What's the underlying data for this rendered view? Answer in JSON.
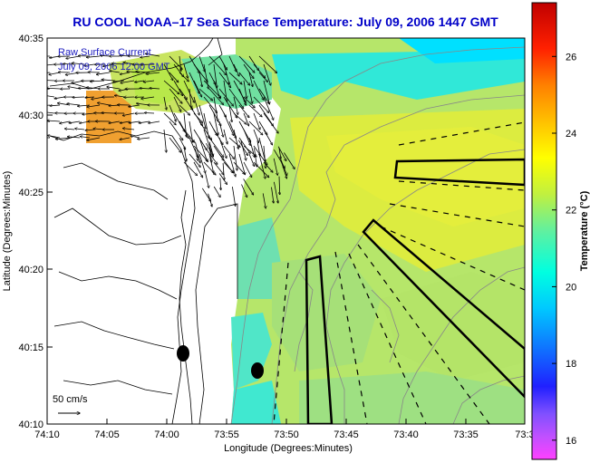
{
  "title": "RU COOL  NOAA–17  Sea Surface Temperature:  July 09, 2006 1447 GMT",
  "overlay": {
    "line1": "Raw Surface Current",
    "line2": "July 09, 2006 12:00 GMT"
  },
  "scale_label": "50 cm/s",
  "axes": {
    "xlabel": "Longitude (Degrees:Minutes)",
    "ylabel": "Latitude (Degrees:Minutes)",
    "xticks": [
      "74:10",
      "74:05",
      "74:00",
      "73:55",
      "73:50",
      "73:45",
      "73:40",
      "73:35",
      "73:3"
    ],
    "yticks": [
      "40:35",
      "40:30",
      "40:25",
      "40:20",
      "40:15",
      "40:10"
    ]
  },
  "colorbar": {
    "label": "Temperature (°C)",
    "ticks": [
      "26",
      "24",
      "22",
      "20",
      "18",
      "16"
    ],
    "range": [
      15.5,
      27.4
    ]
  },
  "colors": {
    "title": "#0000c8",
    "coast": "#000000",
    "contour": "#888888",
    "overlay_text": "#2020c0"
  },
  "chart_data": {
    "type": "heatmap",
    "title": "RU COOL  NOAA–17  Sea Surface Temperature:  July 09, 2006 1447 GMT",
    "xlabel": "Longitude (Degrees:Minutes)",
    "ylabel": "Latitude (Degrees:Minutes)",
    "variable": "Temperature (°C)",
    "x_range_deg": [
      -74.1667,
      -73.5333
    ],
    "y_range_deg": [
      40.1667,
      40.5833
    ],
    "color_range_c": [
      15.5,
      27.4
    ],
    "sample_temperatures_c": [
      {
        "lon": -74.05,
        "lat": 40.5,
        "temp": 24.0
      },
      {
        "lon": -73.96,
        "lat": 40.52,
        "temp": 22.0
      },
      {
        "lon": -73.9,
        "lat": 40.52,
        "temp": 20.0
      },
      {
        "lon": -73.8,
        "lat": 40.5,
        "temp": 20.8
      },
      {
        "lon": -73.7,
        "lat": 40.45,
        "temp": 22.0
      },
      {
        "lon": -73.6,
        "lat": 40.4,
        "temp": 22.2
      },
      {
        "lon": -73.85,
        "lat": 40.35,
        "temp": 21.0
      },
      {
        "lon": -73.75,
        "lat": 40.3,
        "temp": 21.0
      },
      {
        "lon": -73.85,
        "lat": 40.25,
        "temp": 20.5
      },
      {
        "lon": -73.65,
        "lat": 40.2,
        "temp": 20.8
      },
      {
        "lon": -73.9,
        "lat": 40.22,
        "temp": 19.5
      }
    ],
    "grid": false
  }
}
